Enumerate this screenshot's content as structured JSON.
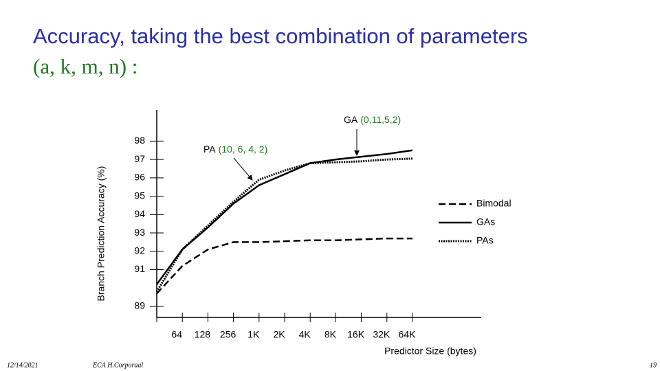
{
  "chart_data": {
    "type": "line",
    "title": "Accuracy, taking the best combination of parameters",
    "subtitle": "(a, k, m, n) :",
    "y_label": "Branch Prediction Accuracy (%)",
    "x_label": "Predictor Size (bytes)",
    "categories": [
      null,
      "64",
      "128",
      "256",
      "1K",
      "2K",
      "4K",
      "8K",
      "16K",
      "32K",
      "64K"
    ],
    "series": [
      {
        "name": "Bimodal",
        "color": "#000000",
        "dash": "dashed",
        "values": [
          89.7,
          91.2,
          92.1,
          92.5,
          92.5,
          92.55,
          92.6,
          92.6,
          92.65,
          92.7,
          92.7
        ]
      },
      {
        "name": "GAs",
        "color": "#000000",
        "dash": "solid",
        "values": [
          90.2,
          92.1,
          93.3,
          94.6,
          95.6,
          96.2,
          96.8,
          97.0,
          97.15,
          97.3,
          97.5
        ]
      },
      {
        "name": "PAs",
        "color": "#000000",
        "dash": "dotted",
        "values": [
          89.8,
          92.1,
          93.4,
          94.7,
          95.9,
          96.4,
          96.8,
          96.85,
          96.9,
          97.0,
          97.05
        ]
      }
    ],
    "ylim": [
      88.4,
      99.7
    ],
    "yticks": [
      89,
      91,
      92,
      93,
      94,
      95,
      96,
      97,
      98
    ],
    "annotations": [
      {
        "label": "GA",
        "params": "(0,11,5,2)"
      },
      {
        "label": "PA",
        "params": "(10, 6, 4, 2)"
      }
    ]
  },
  "footer": {
    "date": "12/14/2021",
    "author": "ECA  H.Corporaal",
    "page": "19"
  }
}
